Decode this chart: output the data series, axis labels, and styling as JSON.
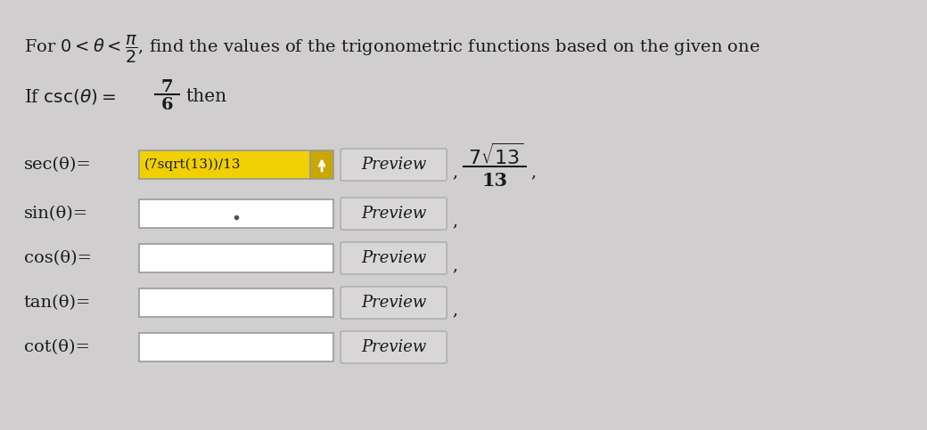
{
  "bg_color": "#d0cece",
  "rows": [
    {
      "label": "sec(θ)=",
      "input_text": "(7sqrt(13))/13",
      "input_bg": "#f0d000",
      "has_arrow": true,
      "arrow_color": "#c8a800",
      "preview_label": "Preview",
      "has_result": true,
      "has_comma": true
    },
    {
      "label": "sin(θ)=",
      "input_text": "",
      "input_bg": "#ffffff",
      "has_arrow": false,
      "preview_label": "Preview",
      "has_result": false,
      "has_comma": true,
      "has_dot": true
    },
    {
      "label": "cos(θ)=",
      "input_text": "",
      "input_bg": "#ffffff",
      "has_arrow": false,
      "preview_label": "Preview",
      "has_result": false,
      "has_comma": true
    },
    {
      "label": "tan(θ)=",
      "input_text": "",
      "input_bg": "#ffffff",
      "has_arrow": false,
      "preview_label": "Preview",
      "has_result": false,
      "has_comma": true
    },
    {
      "label": "cot(θ)=",
      "input_text": "",
      "input_bg": "#ffffff",
      "has_arrow": false,
      "preview_label": "Preview",
      "has_result": false,
      "has_comma": false
    }
  ],
  "text_color": "#1a1a1a",
  "input_border": "#999999",
  "preview_border": "#aaaaaa",
  "preview_bg": "#d8d6d6"
}
